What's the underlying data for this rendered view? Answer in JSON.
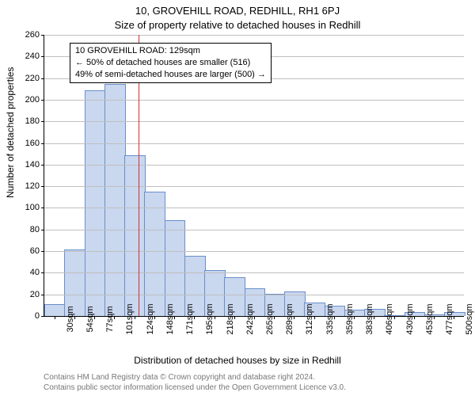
{
  "supertitle": "10, GROVEHILL ROAD, REDHILL, RH1 6PJ",
  "title": "Size of property relative to detached houses in Redhill",
  "xlabel": "Distribution of detached houses by size in Redhill",
  "ylabel": "Number of detached properties",
  "chart": {
    "type": "bar",
    "background_color": "#ffffff",
    "grid_color": "#bfbfbf",
    "axis_color": "#000000",
    "bar_fill": "#c9d7ef",
    "bar_border": "#6a8fc9",
    "reference_line_color": "#cc3333",
    "label_fontsize": 12,
    "tick_fontsize": 11,
    "ylim": [
      0,
      260
    ],
    "ytick_step": 20,
    "categories": [
      "30sqm",
      "54sqm",
      "77sqm",
      "101sqm",
      "124sqm",
      "148sqm",
      "171sqm",
      "195sqm",
      "218sqm",
      "242sqm",
      "265sqm",
      "289sqm",
      "312sqm",
      "335sqm",
      "359sqm",
      "383sqm",
      "406sqm",
      "430sqm",
      "453sqm",
      "477sqm",
      "500sqm"
    ],
    "values": [
      10,
      61,
      208,
      214,
      148,
      114,
      88,
      55,
      42,
      35,
      25,
      20,
      22,
      12,
      9,
      5,
      6,
      0,
      3,
      1,
      3
    ],
    "bar_width": 0.98,
    "reference_x_value": 129,
    "x_numeric_min": 30,
    "x_numeric_max": 500
  },
  "annotation": {
    "line1": "10 GROVEHILL ROAD: 129sqm",
    "line2": "← 50% of detached houses are smaller (516)",
    "line3": "49% of semi-detached houses are larger (500) →"
  },
  "footnote": {
    "line1": "Contains HM Land Registry data © Crown copyright and database right 2024.",
    "line2": "Contains public sector information licensed under the Open Government Licence v3.0."
  }
}
